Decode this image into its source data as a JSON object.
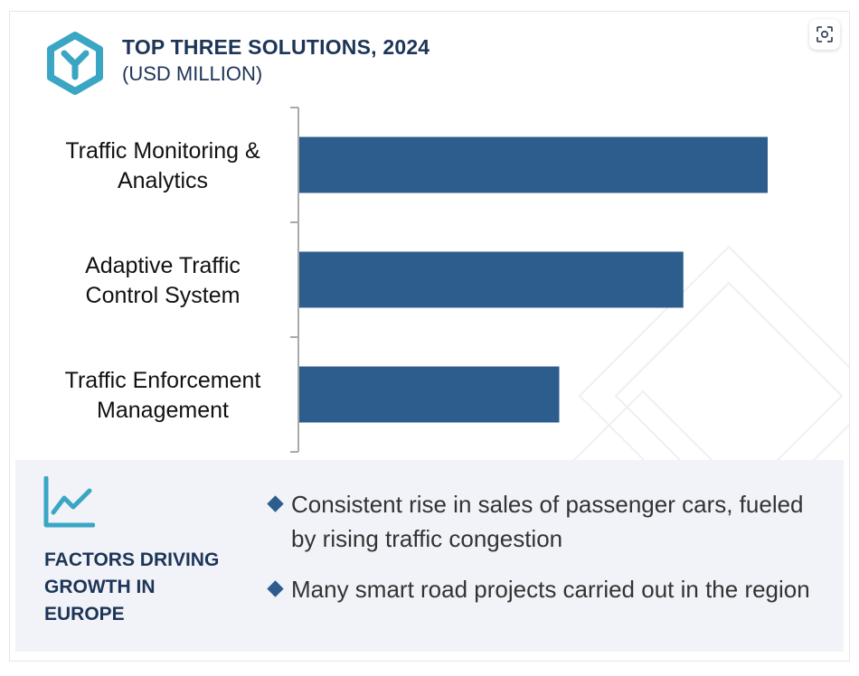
{
  "header": {
    "title": "TOP THREE SOLUTIONS, 2024",
    "subtitle": "(USD MILLION)",
    "logo_icon": "y-hexagon-logo-icon",
    "scan_icon": "image-scan-icon"
  },
  "colors": {
    "bar": "#2c5d8d",
    "accent": "#3aa6c4",
    "heading": "#1d3557",
    "panel": "#f1f3f8"
  },
  "chart_data": {
    "type": "bar",
    "orientation": "horizontal",
    "title": "TOP THREE SOLUTIONS, 2024",
    "subtitle": "(USD MILLION)",
    "categories": [
      [
        "Traffic Monitoring &",
        "Analytics"
      ],
      [
        "Adaptive Traffic",
        "Control System"
      ],
      [
        "Traffic Enforcement",
        "Management"
      ]
    ],
    "values": [
      100,
      82,
      55.5
    ],
    "xlim": [
      0,
      100
    ],
    "value_axis_visible": false,
    "grid": false,
    "legend": "none"
  },
  "factors": {
    "icon": "trend-line-chart-icon",
    "title": "FACTORS DRIVING\nGROWTH IN\nEUROPE",
    "bullets": [
      "Consistent rise in sales of passenger cars, fueled by rising traffic congestion",
      "Many smart road projects carried out in the region"
    ]
  }
}
